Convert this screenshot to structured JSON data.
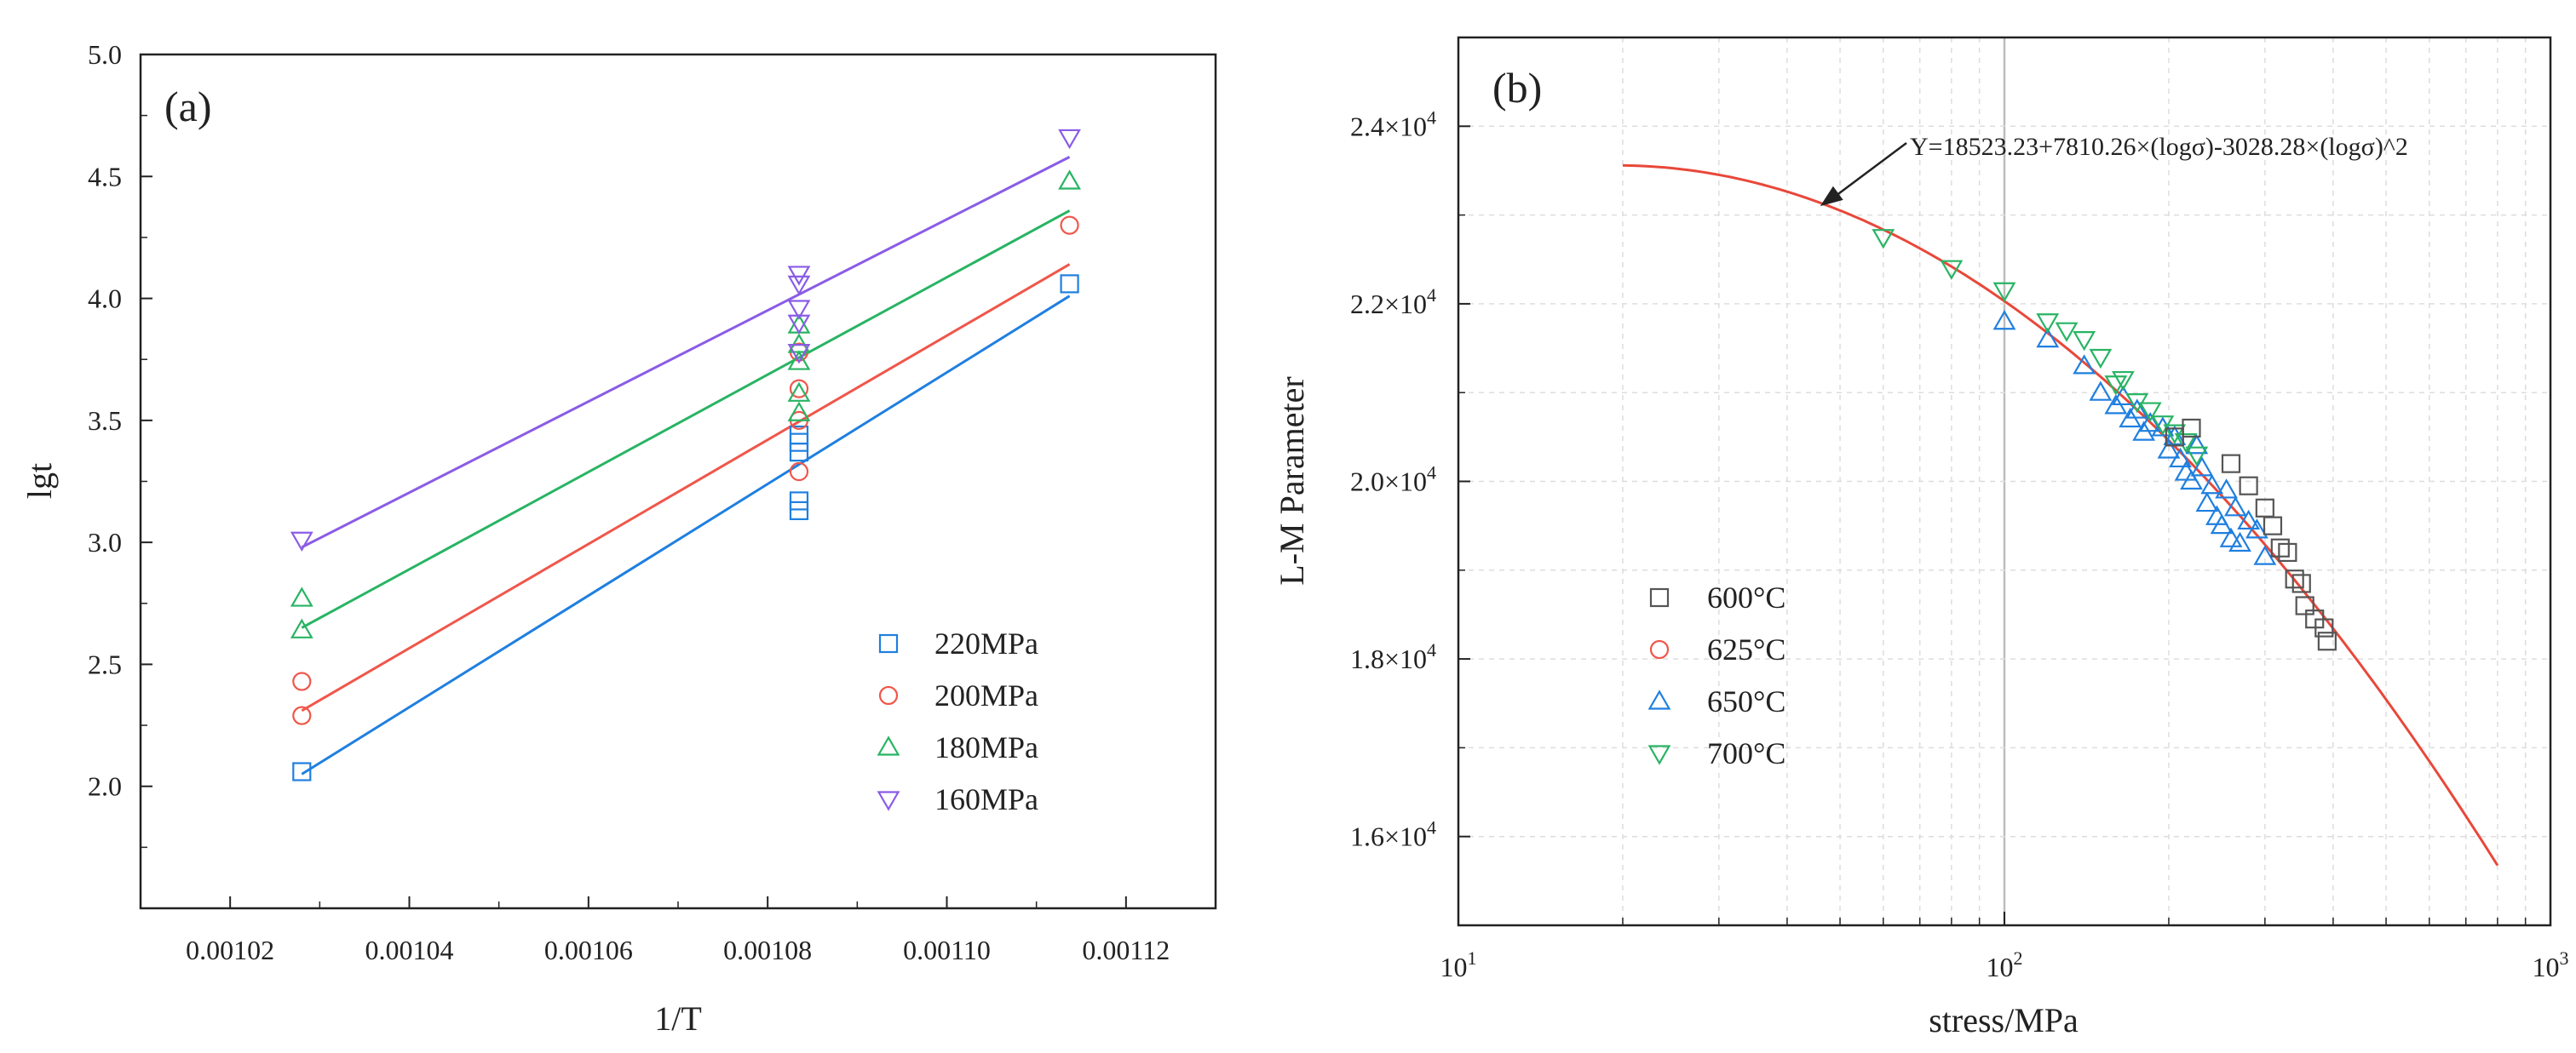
{
  "chart_data": [
    {
      "panel_label": "(a)",
      "type": "scatter",
      "xlabel": "1/T",
      "ylabel": "lgt",
      "xlim": [
        0.00101,
        0.00113
      ],
      "ylim": [
        1.5,
        5.0
      ],
      "xticks": [
        0.00102,
        0.00104,
        0.00106,
        0.00108,
        0.0011,
        0.00112
      ],
      "xtick_labels": [
        "0.00102",
        "0.00104",
        "0.00106",
        "0.00108",
        "0.00110",
        "0.00112"
      ],
      "yticks": [
        2.0,
        2.5,
        3.0,
        3.5,
        4.0,
        4.5,
        5.0
      ],
      "ytick_labels": [
        "2.0",
        "2.5",
        "3.0",
        "3.5",
        "4.0",
        "4.5",
        "5.0"
      ],
      "legend_position": "bottom-right",
      "series": [
        {
          "name": "220MPa",
          "color": "#1f7fe0",
          "marker": "square",
          "points": [
            [
              0.001028,
              2.06
            ],
            [
              0.0010835,
              3.13
            ],
            [
              0.0010835,
              3.17
            ],
            [
              0.0010835,
              3.37
            ],
            [
              0.0010835,
              3.41
            ],
            [
              0.0010835,
              3.44
            ],
            [
              0.0011137,
              4.06
            ]
          ],
          "fit": [
            [
              0.001028,
              2.05
            ],
            [
              0.0011137,
              4.01
            ]
          ]
        },
        {
          "name": "200MPa",
          "color": "#f0564a",
          "marker": "circle",
          "points": [
            [
              0.001028,
              2.29
            ],
            [
              0.001028,
              2.43
            ],
            [
              0.0010835,
              3.29
            ],
            [
              0.0010835,
              3.5
            ],
            [
              0.0010835,
              3.63
            ],
            [
              0.0010835,
              3.78
            ],
            [
              0.0011137,
              4.3
            ]
          ],
          "fit": [
            [
              0.001028,
              2.31
            ],
            [
              0.0011137,
              4.14
            ]
          ]
        },
        {
          "name": "180MPa",
          "color": "#28b463",
          "marker": "triangle-up",
          "points": [
            [
              0.001028,
              2.64
            ],
            [
              0.001028,
              2.77
            ],
            [
              0.0010835,
              3.53
            ],
            [
              0.0010835,
              3.61
            ],
            [
              0.0010835,
              3.74
            ],
            [
              0.0010835,
              3.81
            ],
            [
              0.0010835,
              3.89
            ],
            [
              0.0011137,
              4.48
            ]
          ],
          "fit": [
            [
              0.001028,
              2.65
            ],
            [
              0.0011137,
              4.36
            ]
          ]
        },
        {
          "name": "160MPa",
          "color": "#8a5ce6",
          "marker": "triangle-down",
          "points": [
            [
              0.001028,
              3.01
            ],
            [
              0.0010835,
              3.78
            ],
            [
              0.0010835,
              3.9
            ],
            [
              0.0010835,
              3.96
            ],
            [
              0.0010835,
              4.06
            ],
            [
              0.0010835,
              4.1
            ],
            [
              0.0011137,
              4.66
            ]
          ],
          "fit": [
            [
              0.001028,
              2.98
            ],
            [
              0.0011137,
              4.58
            ]
          ]
        }
      ]
    },
    {
      "panel_label": "(b)",
      "type": "scatter",
      "xlabel": "stress/MPa",
      "ylabel": "L-M Parameter",
      "x_scale": "log",
      "xlim": [
        10,
        1000
      ],
      "ylim": [
        15000,
        25000
      ],
      "xtick_labels": [
        {
          "base": "10",
          "exp": "1",
          "value": 10
        },
        {
          "base": "10",
          "exp": "2",
          "value": 100
        },
        {
          "base": "10",
          "exp": "3",
          "value": 1000
        }
      ],
      "ytick_labels": [
        {
          "mantissa": "1.6×10",
          "exp": "4",
          "value": 16000
        },
        {
          "mantissa": "1.8×10",
          "exp": "4",
          "value": 18000
        },
        {
          "mantissa": "2.0×10",
          "exp": "4",
          "value": 20000
        },
        {
          "mantissa": "2.2×10",
          "exp": "4",
          "value": 22000
        },
        {
          "mantissa": "2.4×10",
          "exp": "4",
          "value": 24000
        }
      ],
      "grid": true,
      "legend_position": "left-middle",
      "annotation": {
        "text": "Y=18523.23+7810.26×(logσ)-3028.28×(logσ)^2",
        "arrow_to": [
          46,
          23100
        ]
      },
      "curve": {
        "color": "#e8483a",
        "coefficients": [
          18523.23,
          7810.26,
          -3028.28
        ],
        "x_range": [
          20,
          800
        ]
      },
      "series": [
        {
          "name": "600°C",
          "color": "#555555",
          "marker": "square",
          "points": [
            [
              205,
              20500
            ],
            [
              220,
              20600
            ],
            [
              260,
              20200
            ],
            [
              280,
              19950
            ],
            [
              300,
              19700
            ],
            [
              310,
              19500
            ],
            [
              320,
              19250
            ],
            [
              330,
              19200
            ],
            [
              340,
              18900
            ],
            [
              350,
              18850
            ],
            [
              355,
              18600
            ],
            [
              370,
              18450
            ],
            [
              385,
              18350
            ],
            [
              390,
              18200
            ]
          ]
        },
        {
          "name": "625°C",
          "color": "#f0564a",
          "marker": "circle",
          "points": []
        },
        {
          "name": "650°C",
          "color": "#1f7fe0",
          "marker": "triangle-up",
          "points": [
            [
              100,
              21800
            ],
            [
              120,
              21600
            ],
            [
              140,
              21300
            ],
            [
              150,
              21000
            ],
            [
              160,
              20850
            ],
            [
              165,
              20950
            ],
            [
              170,
              20700
            ],
            [
              175,
              20800
            ],
            [
              180,
              20550
            ],
            [
              185,
              20650
            ],
            [
              195,
              20600
            ],
            [
              200,
              20350
            ],
            [
              205,
              20500
            ],
            [
              210,
              20250
            ],
            [
              215,
              20100
            ],
            [
              220,
              20000
            ],
            [
              225,
              20400
            ],
            [
              230,
              20150
            ],
            [
              235,
              19750
            ],
            [
              240,
              19950
            ],
            [
              245,
              19600
            ],
            [
              250,
              19500
            ],
            [
              255,
              19900
            ],
            [
              260,
              19350
            ],
            [
              265,
              19700
            ],
            [
              270,
              19300
            ],
            [
              280,
              19550
            ],
            [
              290,
              19450
            ],
            [
              300,
              19150
            ]
          ]
        },
        {
          "name": "700°C",
          "color": "#28b463",
          "marker": "triangle-down",
          "points": [
            [
              60,
              22750
            ],
            [
              80,
              22400
            ],
            [
              100,
              22150
            ],
            [
              120,
              21800
            ],
            [
              130,
              21700
            ],
            [
              140,
              21600
            ],
            [
              150,
              21400
            ],
            [
              160,
              21100
            ],
            [
              165,
              21150
            ],
            [
              175,
              20900
            ],
            [
              185,
              20800
            ],
            [
              195,
              20650
            ],
            [
              205,
              20550
            ],
            [
              215,
              20450
            ],
            [
              225,
              20300
            ]
          ]
        }
      ]
    }
  ]
}
